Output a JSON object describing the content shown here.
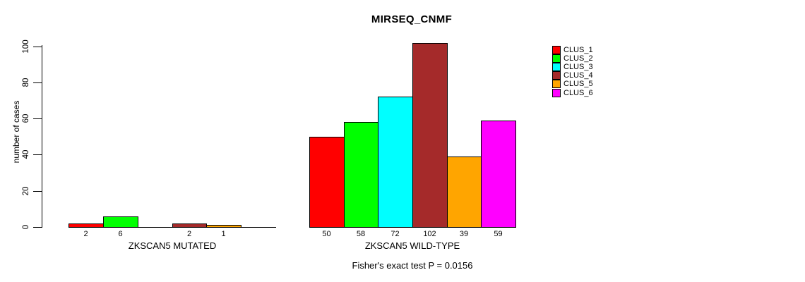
{
  "chart_data": {
    "type": "bar",
    "title": "MIRSEQ_CNMF",
    "ylabel": "number of cases",
    "xlabel": "",
    "ylim": [
      0,
      100
    ],
    "yticks": [
      0,
      20,
      40,
      60,
      80,
      100
    ],
    "grid": false,
    "legend_position": "right-outside-top",
    "categories": [
      "ZKSCAN5 MUTATED",
      "ZKSCAN5 WILD-TYPE"
    ],
    "series": [
      {
        "name": "CLUS_1",
        "color": "#FF0000",
        "values": [
          2,
          50
        ]
      },
      {
        "name": "CLUS_2",
        "color": "#00FF00",
        "values": [
          6,
          58
        ]
      },
      {
        "name": "CLUS_3",
        "color": "#00FFFF",
        "values": [
          0,
          72
        ]
      },
      {
        "name": "CLUS_4",
        "color": "#A52A2A",
        "values": [
          2,
          102
        ]
      },
      {
        "name": "CLUS_5",
        "color": "#FFA500",
        "values": [
          1,
          39
        ]
      },
      {
        "name": "CLUS_6",
        "color": "#FF00FF",
        "values": [
          0,
          59
        ]
      }
    ],
    "bar_value_labels": [
      [
        "2",
        "6",
        "",
        "2",
        "1",
        ""
      ],
      [
        "50",
        "58",
        "72",
        "102",
        "39",
        "59"
      ]
    ],
    "annotation": "Fisher's exact test P = 0.0156",
    "axis_color": "#000000",
    "bar_border_color": "#000000",
    "text_color": "#000000",
    "background_color": "#FFFFFF"
  }
}
